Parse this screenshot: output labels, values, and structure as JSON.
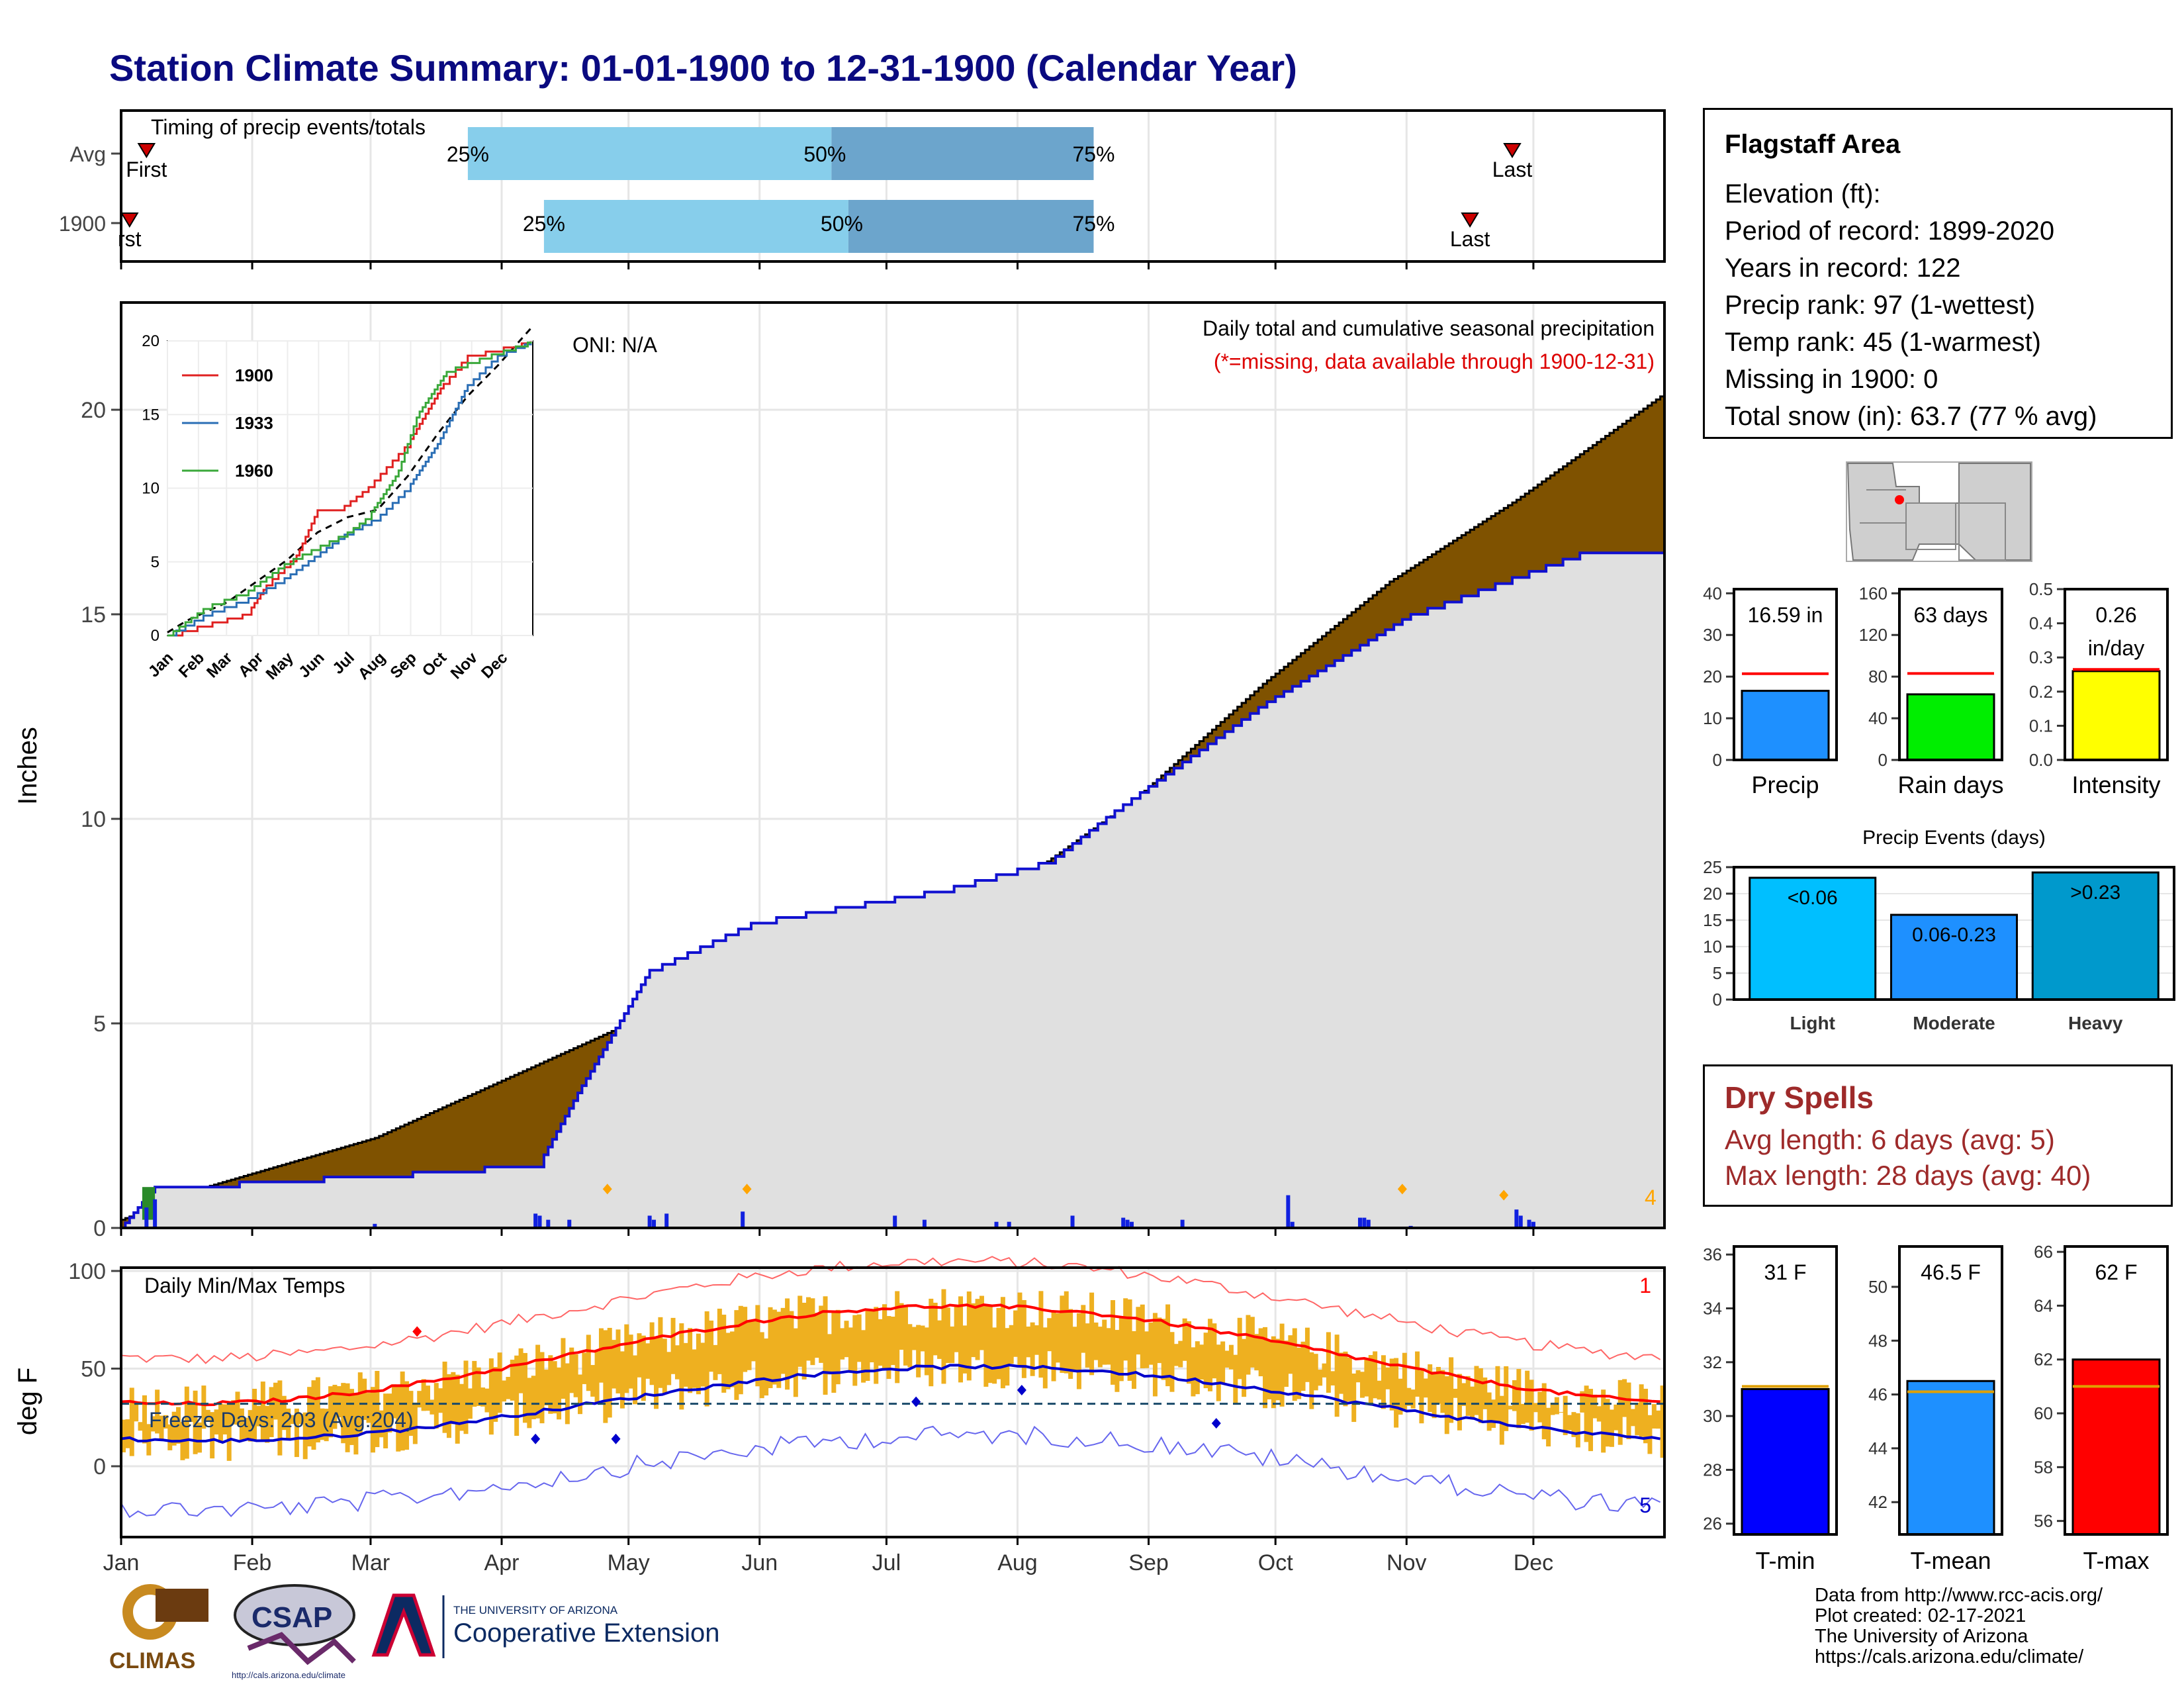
{
  "title": "Station Climate Summary: 01-01-1900 to 12-31-1900 (Calendar Year)",
  "colors": {
    "title": "#0a0a80",
    "cumulative_fill": "#7f5200",
    "avg_fill": "#e0e0e0",
    "avg_line": "#1010d0",
    "precip_bar": "#1020e0",
    "q_light": "#87ceeb",
    "q_dark": "#6ca5cc",
    "temp_bar": "#eeb020",
    "tmax": "#ff0000",
    "tmin": "#0000cc"
  },
  "timing": {
    "label": "Timing of precip events/totals",
    "rows": [
      {
        "name": "Avg",
        "first": "First",
        "last": "Last",
        "p25": "25%",
        "p50": "50%",
        "p75": "75%"
      },
      {
        "name": "1900",
        "first": "rst",
        "last": "Last",
        "p25": "25%",
        "p50": "50%",
        "p75": "75%"
      }
    ],
    "quantiles_day": [
      [
        82,
        168,
        230
      ],
      [
        100,
        172,
        230
      ]
    ],
    "first_last_day": [
      [
        6,
        329
      ],
      [
        2,
        319
      ]
    ]
  },
  "precip": {
    "ylabel": "Inches",
    "annotation_title": "Daily total and cumulative seasonal precipitation",
    "annotation_missing": "(*=missing, data available through 1900-12-31)",
    "oni": "ONI: N/A",
    "corner_count": "4",
    "yticks": [
      "0",
      "5",
      "10",
      "15",
      "20"
    ],
    "months": [
      "Jan",
      "Feb",
      "Mar",
      "Apr",
      "May",
      "Jun",
      "Jul",
      "Aug",
      "Sep",
      "Oct",
      "Nov",
      "Dec"
    ]
  },
  "chart_data": [
    {
      "type": "area",
      "title": "Daily total and cumulative seasonal precipitation",
      "ylabel": "Inches",
      "ylim": [
        0,
        22.5
      ],
      "series": [
        {
          "name": "Avg",
          "x_day": [
            0,
            20,
            60,
            120,
            150,
            180,
            210,
            240,
            270,
            300,
            330,
            365
          ],
          "y": [
            0.2,
            1.0,
            2.2,
            5.0,
            6.8,
            7.8,
            8.3,
            10.5,
            13.3,
            15.8,
            17.8,
            20.4
          ]
        },
        {
          "name": "1900",
          "x_day": [
            0,
            8,
            40,
            75,
            99,
            108,
            125,
            150,
            195,
            220,
            235,
            270,
            305,
            345,
            365
          ],
          "y": [
            0,
            1.0,
            1.2,
            1.4,
            1.6,
            3.3,
            6.3,
            7.5,
            8.3,
            9.0,
            10.2,
            12.8,
            15.0,
            16.5,
            16.6
          ]
        }
      ]
    },
    {
      "type": "line",
      "title": "",
      "ylim": [
        0,
        20
      ],
      "x": [
        "Jan",
        "Feb",
        "Mar",
        "Apr",
        "May",
        "Jun",
        "Jul",
        "Aug",
        "Sep",
        "Oct",
        "Nov",
        "Dec"
      ],
      "series": [
        {
          "name": "1900",
          "x_day": [
            0,
            40,
            80,
            100,
            130,
            150,
            175,
            200,
            240,
            275,
            300,
            365
          ],
          "y": [
            0,
            0.8,
            1.5,
            3.5,
            5.5,
            8.5,
            8.7,
            10,
            13,
            17,
            19,
            20
          ]
        },
        {
          "name": "1933",
          "x_day": [
            0,
            40,
            80,
            120,
            150,
            180,
            210,
            240,
            270,
            300,
            330,
            365
          ],
          "y": [
            0,
            1.5,
            2.5,
            4,
            5.5,
            7,
            8,
            10,
            13,
            17,
            19,
            20
          ]
        },
        {
          "name": "1960",
          "x_day": [
            0,
            40,
            80,
            120,
            150,
            180,
            200,
            230,
            250,
            280,
            320,
            365
          ],
          "y": [
            0,
            2,
            3,
            5,
            6,
            7,
            8,
            11,
            15,
            18,
            19,
            20
          ]
        }
      ]
    },
    {
      "type": "bar",
      "categories": [
        "Precip",
        "Rain days",
        "Intensity"
      ],
      "values": [
        16.59,
        63,
        0.26
      ],
      "labels": [
        "16.59 in",
        "63 days",
        "0.26 in/day"
      ],
      "averages": [
        20.7,
        83,
        0.265
      ],
      "yticks": [
        [
          "0",
          "10",
          "20",
          "30",
          "40"
        ],
        [
          "0",
          "40",
          "80",
          "120",
          "160"
        ],
        [
          "0.0",
          "0.1",
          "0.2",
          "0.3",
          "0.4",
          "0.5"
        ]
      ]
    },
    {
      "type": "bar",
      "title": "Precip Events (days)",
      "categories": [
        "Light",
        "Moderate",
        "Heavy"
      ],
      "bar_labels": [
        "<0.06",
        "0.06-0.23",
        ">0.23"
      ],
      "values": [
        23,
        16,
        24
      ],
      "yticks": [
        "0",
        "5",
        "10",
        "15",
        "20",
        "25"
      ]
    },
    {
      "type": "line",
      "title": "Daily Min/Max Temps",
      "ylabel": "deg F",
      "ylim": [
        -30,
        102
      ],
      "yticks": [
        "0",
        "50",
        "100"
      ],
      "freeze": "Freeze Days: 203 (Avg:204)",
      "records_hi": "1",
      "records_lo": "5"
    },
    {
      "type": "bar",
      "categories": [
        "T-min",
        "T-mean",
        "T-max"
      ],
      "values": [
        31,
        46.5,
        62
      ],
      "labels": [
        "31 F",
        "46.5 F",
        "62 F"
      ],
      "averages": [
        31.1,
        46.1,
        61
      ],
      "yticks": [
        [
          "26",
          "28",
          "30",
          "32",
          "34",
          "36"
        ],
        [
          "42",
          "44",
          "46",
          "48",
          "50"
        ],
        [
          "56",
          "58",
          "60",
          "62",
          "64",
          "66"
        ]
      ]
    }
  ],
  "station": {
    "name": "Flagstaff Area",
    "lines": [
      "Elevation (ft):",
      "Period of record: 1899-2020",
      "Years in record: 122",
      "Precip rank: 97 (1-wettest)",
      "Temp rank: 45 (1-warmest)",
      "Missing in 1900: 0",
      "Total snow (in): 63.7 (77 % avg)"
    ]
  },
  "dry_spells": {
    "title": "Dry Spells",
    "avg": "Avg length: 6 days (avg: 5)",
    "max": "Max length: 28 days (avg: 40)"
  },
  "footer": [
    "Data from http://www.rcc-acis.org/",
    "Plot created: 02-17-2021",
    "The University of Arizona",
    "https://cals.arizona.edu/climate/"
  ],
  "logos": {
    "climas": "CLIMAS",
    "csap": "CSAP",
    "csap_url": "http://cals.arizona.edu/climate",
    "ua_small": "THE UNIVERSITY OF ARIZONA",
    "ua_big": "Cooperative Extension"
  }
}
